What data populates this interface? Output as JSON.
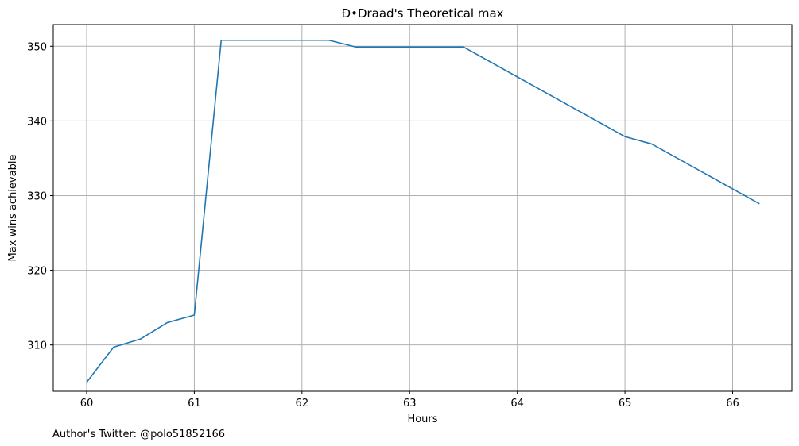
{
  "chart_data": {
    "type": "line",
    "title": "Đ•Draad's Theoretical max",
    "xlabel": "Hours",
    "ylabel": "Max wins achievable",
    "footer": "Author's Twitter: @polo51852166",
    "xlim": [
      59.69,
      66.55
    ],
    "ylim": [
      303.8,
      352.9
    ],
    "xticks": [
      60,
      61,
      62,
      63,
      64,
      65,
      66
    ],
    "yticks": [
      310,
      320,
      330,
      340,
      350
    ],
    "grid": true,
    "line_color": "#1f77b4",
    "grid_color": "#b0b0b0",
    "series": [
      {
        "x": [
          60,
          60.25,
          60.5,
          60.75,
          61,
          61.25,
          62.25,
          62.5,
          63.5,
          65,
          65.25,
          66.25
        ],
        "y": [
          305,
          309.7,
          310.8,
          313,
          314,
          350.8,
          350.8,
          349.9,
          349.9,
          337.9,
          336.9,
          328.9
        ]
      }
    ]
  }
}
